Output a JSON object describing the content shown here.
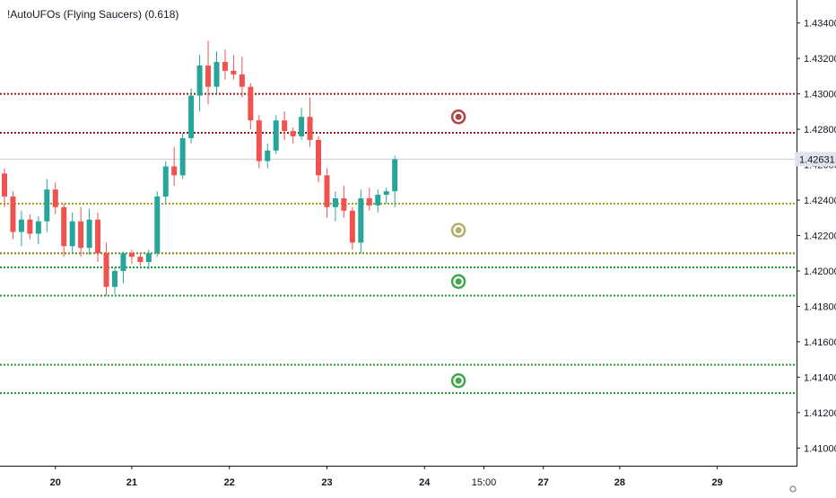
{
  "title": "!AutoUFOs (Flying Saucers) (0.618)",
  "chart_data": {
    "type": "candlestick",
    "y_ticks": [
      "1.43400",
      "1.43200",
      "1.43000",
      "1.42800",
      "1.42600",
      "1.42400",
      "1.42200",
      "1.42000",
      "1.41800",
      "1.41600",
      "1.41400",
      "1.41200",
      "1.41000"
    ],
    "y_tick_values": [
      1.434,
      1.432,
      1.43,
      1.428,
      1.426,
      1.424,
      1.422,
      1.42,
      1.418,
      1.416,
      1.414,
      1.412,
      1.41
    ],
    "ylim": [
      1.409,
      1.4353
    ],
    "last_price_label": "1.42631",
    "last_price": 1.42631,
    "x_ticks": [
      {
        "label": "20",
        "bar": 6
      },
      {
        "label": "21",
        "bar": 15
      },
      {
        "label": "22",
        "bar": 26.5
      },
      {
        "label": "23",
        "bar": 38
      },
      {
        "label": "24",
        "bar": 49.5
      },
      {
        "label": "15:00",
        "bar": 56.5
      },
      {
        "label": "27",
        "bar": 63.5
      },
      {
        "label": "28",
        "bar": 72.5
      },
      {
        "label": "29",
        "bar": 84
      }
    ],
    "levels": [
      {
        "value": 1.43,
        "color": "#8b1a1a"
      },
      {
        "value": 1.4278,
        "color": "#8b1a1a"
      },
      {
        "value": 1.4238,
        "color": "#a89a1a"
      },
      {
        "value": 1.421,
        "color": "#8a7a10"
      },
      {
        "value": 1.4202,
        "color": "#1a9a2a"
      },
      {
        "value": 1.4186,
        "color": "#1a9a2a"
      },
      {
        "value": 1.4147,
        "color": "#1a9a2a"
      },
      {
        "value": 1.4131,
        "color": "#1a9a2a"
      }
    ],
    "ufos": [
      {
        "value": 1.4287,
        "bar": 53.5,
        "color": "#b04545"
      },
      {
        "value": 1.4223,
        "bar": 53.5,
        "color": "#b4ad6a"
      },
      {
        "value": 1.4194,
        "bar": 53.5,
        "color": "#3fa84a"
      },
      {
        "value": 1.4138,
        "bar": 53.5,
        "color": "#3fa84a"
      }
    ],
    "candles": [
      [
        1.4255,
        1.4258,
        1.4236,
        1.4242
      ],
      [
        1.4242,
        1.4245,
        1.4218,
        1.4222
      ],
      [
        1.4222,
        1.4234,
        1.4214,
        1.4229
      ],
      [
        1.4229,
        1.4232,
        1.4218,
        1.4221
      ],
      [
        1.4221,
        1.4231,
        1.4215,
        1.4228
      ],
      [
        1.4228,
        1.4252,
        1.4222,
        1.4246
      ],
      [
        1.4246,
        1.425,
        1.4232,
        1.4236
      ],
      [
        1.4236,
        1.4238,
        1.4208,
        1.4214
      ],
      [
        1.4214,
        1.4233,
        1.421,
        1.4228
      ],
      [
        1.4228,
        1.4236,
        1.4208,
        1.4213
      ],
      [
        1.4213,
        1.4235,
        1.4209,
        1.4229
      ],
      [
        1.4229,
        1.4233,
        1.4205,
        1.421
      ],
      [
        1.421,
        1.4216,
        1.4186,
        1.4191
      ],
      [
        1.4191,
        1.4202,
        1.4187,
        1.42
      ],
      [
        1.42,
        1.4211,
        1.4193,
        1.421
      ],
      [
        1.421,
        1.4212,
        1.4204,
        1.4208
      ],
      [
        1.4208,
        1.421,
        1.4203,
        1.4205
      ],
      [
        1.4205,
        1.4212,
        1.4201,
        1.421
      ],
      [
        1.421,
        1.4245,
        1.4208,
        1.4242
      ],
      [
        1.4242,
        1.4262,
        1.4238,
        1.4259
      ],
      [
        1.4259,
        1.427,
        1.4248,
        1.4254
      ],
      [
        1.4254,
        1.4278,
        1.4252,
        1.4275
      ],
      [
        1.4275,
        1.4303,
        1.4272,
        1.4299
      ],
      [
        1.4299,
        1.4322,
        1.429,
        1.4316
      ],
      [
        1.4316,
        1.433,
        1.4294,
        1.4304
      ],
      [
        1.4304,
        1.4324,
        1.43,
        1.4318
      ],
      [
        1.4318,
        1.4325,
        1.4308,
        1.4313
      ],
      [
        1.4313,
        1.4322,
        1.4308,
        1.4311
      ],
      [
        1.4311,
        1.4321,
        1.4298,
        1.4304
      ],
      [
        1.4304,
        1.4306,
        1.428,
        1.4285
      ],
      [
        1.4285,
        1.4288,
        1.4258,
        1.4262
      ],
      [
        1.4262,
        1.4272,
        1.4258,
        1.4268
      ],
      [
        1.4268,
        1.4288,
        1.4266,
        1.4285
      ],
      [
        1.4285,
        1.429,
        1.4274,
        1.4279
      ],
      [
        1.4279,
        1.4281,
        1.4272,
        1.4276
      ],
      [
        1.4276,
        1.4292,
        1.4274,
        1.4287
      ],
      [
        1.4287,
        1.4298,
        1.427,
        1.4274
      ],
      [
        1.4274,
        1.4276,
        1.425,
        1.4254
      ],
      [
        1.4254,
        1.4258,
        1.423,
        1.4236
      ],
      [
        1.4236,
        1.4245,
        1.4228,
        1.4241
      ],
      [
        1.4241,
        1.4248,
        1.423,
        1.4234
      ],
      [
        1.4234,
        1.4236,
        1.4212,
        1.4216
      ],
      [
        1.4216,
        1.4246,
        1.421,
        1.4241
      ],
      [
        1.4241,
        1.4247,
        1.4234,
        1.4237
      ],
      [
        1.4237,
        1.4246,
        1.4233,
        1.4243
      ],
      [
        1.4243,
        1.4247,
        1.4238,
        1.4245
      ],
      [
        1.4245,
        1.4265,
        1.4236,
        1.4263
      ]
    ],
    "grid": false
  }
}
